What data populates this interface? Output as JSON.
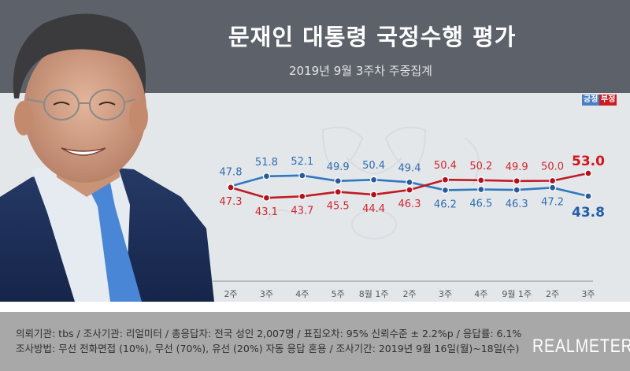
{
  "header": {
    "title": "문재인 대통령 국정수행 평가",
    "subtitle": "2019년 9월 3주차 주중집계"
  },
  "legend": {
    "positive": "긍정",
    "negative": "부정",
    "positive_color": "#2f6db0",
    "negative_color": "#c8161e"
  },
  "chart_data": {
    "type": "line",
    "title": "문재인 대통령 국정수행 평가",
    "subtitle": "2019년 9월 3주차 주중집계",
    "categories": [
      "2주",
      "3주",
      "4주",
      "5주",
      "8월 1주",
      "2주",
      "3주",
      "4주",
      "9월 1주",
      "2주",
      "3주"
    ],
    "series": [
      {
        "name": "긍정",
        "color": "#2f6db0",
        "values": [
          47.8,
          51.8,
          52.1,
          49.9,
          50.4,
          49.4,
          46.2,
          46.5,
          46.3,
          47.2,
          43.8
        ]
      },
      {
        "name": "부정",
        "color": "#c8161e",
        "values": [
          47.3,
          43.1,
          43.7,
          45.5,
          44.4,
          46.3,
          50.4,
          50.2,
          49.9,
          50.0,
          53.0
        ]
      }
    ],
    "value_labels": {
      "positive": [
        "47.8",
        "51.8",
        "52.1",
        "49.9",
        "50.4",
        "49.4",
        "46.2",
        "46.5",
        "46.3",
        "47.2",
        "43.8"
      ],
      "negative": [
        "47.3",
        "43.1",
        "43.7",
        "45.5",
        "44.4",
        "46.3",
        "50.4",
        "50.2",
        "49.9",
        "50.0",
        "53.0"
      ]
    },
    "xlabel": "",
    "ylabel": "",
    "grid": false,
    "legend_position": "top-right"
  },
  "footer": {
    "line1": "의뢰기관:  tbs  /  조사기관:  리얼미터  /  총응답자:  전국 성인 2,007명  /  표집오차:  95% 신뢰수준 ± 2.2%p  /  응답률: 6.1%",
    "line2": "조사방법:  무선 전화면접 (10%), 무선 (70%), 유선 (20%)  자동 응답 혼용  /  조사기간:  2019년 9월 16일(월)~18일(수)",
    "brand": "REALMETER"
  }
}
